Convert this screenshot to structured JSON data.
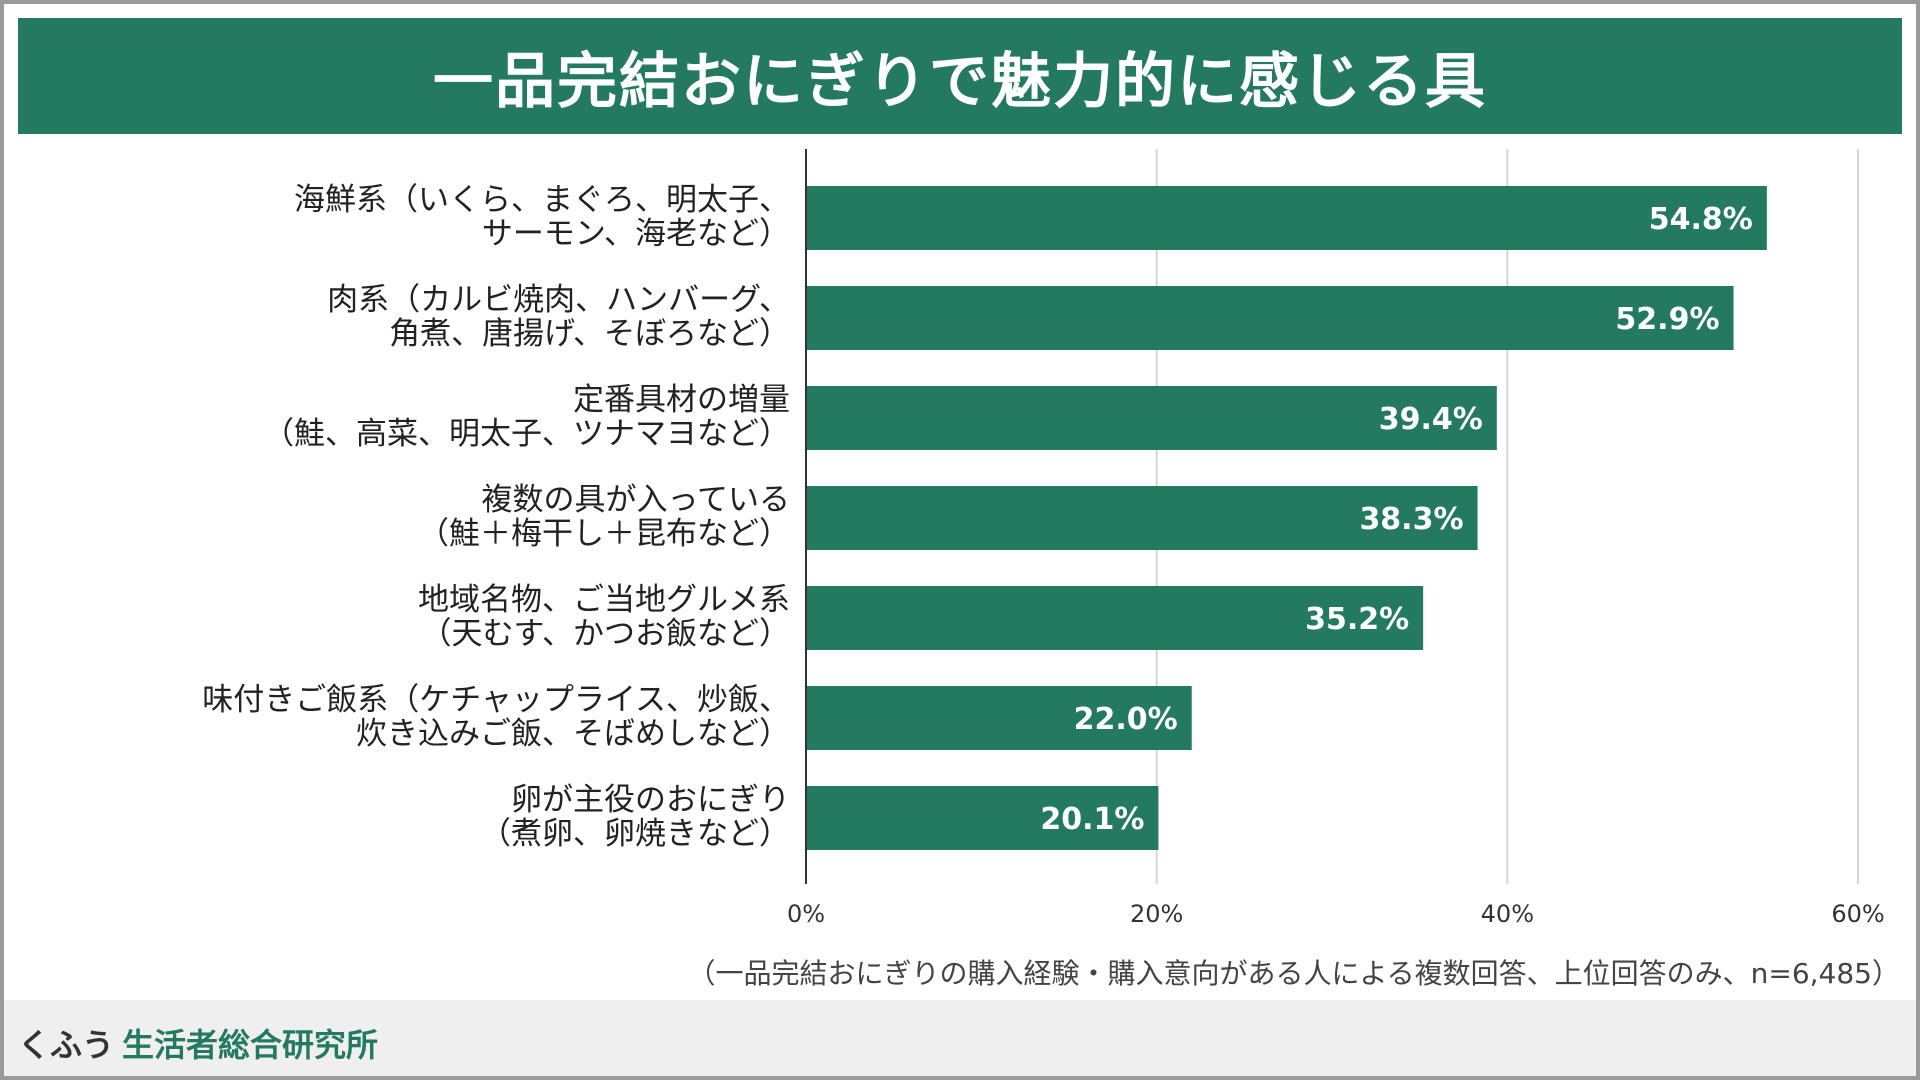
{
  "title": "一品完結おにぎりで魅力的に感じる具",
  "note": "（一品完結おにぎりの購入経験・購入意向がある人による複数回答、上位回答のみ、n=6,485）",
  "brand": {
    "part1": "くふう",
    "part2": "生活者総合研究所"
  },
  "colors": {
    "accent": "#237a5e",
    "grid": "#d6d6d6",
    "axis": "#333333"
  },
  "chart_data": {
    "type": "bar",
    "orientation": "horizontal",
    "title": "一品完結おにぎりで魅力的に感じる具",
    "categories": [
      [
        "海鮮系（いくら、まぐろ、明太子、",
        "サーモン、海老など）"
      ],
      [
        "肉系（カルビ焼肉、ハンバーグ、",
        "角煮、唐揚げ、そぼろなど）"
      ],
      [
        "定番具材の増量",
        "（鮭、高菜、明太子、ツナマヨなど）"
      ],
      [
        "複数の具が入っている",
        "（鮭＋梅干し＋昆布など）"
      ],
      [
        "地域名物、ご当地グルメ系",
        "（天むす、かつお飯など）"
      ],
      [
        "味付きご飯系（ケチャップライス、炒飯、",
        "炊き込みご飯、そばめしなど）"
      ],
      [
        "卵が主役のおにぎり",
        "（煮卵、卵焼きなど）"
      ]
    ],
    "values": [
      54.8,
      52.9,
      39.4,
      38.3,
      35.2,
      22.0,
      20.1
    ],
    "value_labels": [
      "54.8%",
      "52.9%",
      "39.4%",
      "38.3%",
      "35.2%",
      "22.0%",
      "20.1%"
    ],
    "xlim": [
      0,
      60
    ],
    "xticks": [
      0,
      20,
      40,
      60
    ],
    "xtick_labels": [
      "0%",
      "20%",
      "40%",
      "60%"
    ],
    "grid": true,
    "legend": "none"
  }
}
